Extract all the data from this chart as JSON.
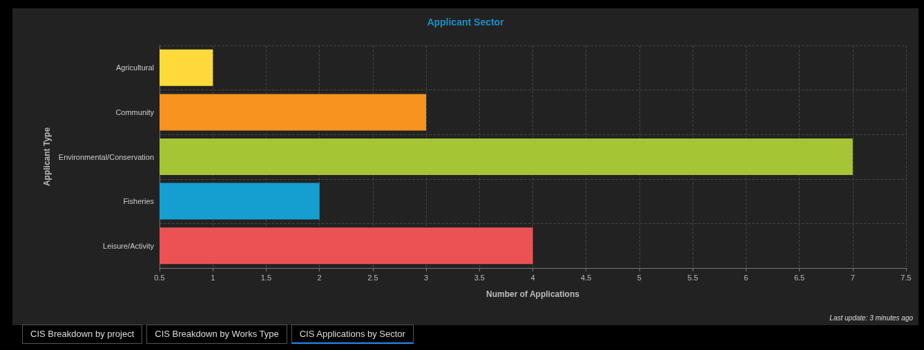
{
  "chart_data": {
    "type": "bar",
    "orientation": "horizontal",
    "title": "Applicant Sector",
    "xlabel": "Number of Applications",
    "ylabel": "Applicant Type",
    "categories": [
      "Agricultural",
      "Community",
      "Environmental/Conservation",
      "Fisheries",
      "Leisure/Activity"
    ],
    "values": [
      1,
      3,
      7,
      2,
      4
    ],
    "colors": [
      "#fedb3a",
      "#f8931f",
      "#a6c535",
      "#159fd0",
      "#ec5254"
    ],
    "xlim": [
      0.5,
      7.5
    ],
    "xticks": [
      0.5,
      1,
      1.5,
      2,
      2.5,
      3,
      3.5,
      4,
      4.5,
      5,
      5.5,
      6,
      6.5,
      7,
      7.5
    ],
    "grid": true,
    "annotations": [
      "CIS Breakdown by project",
      "CIS Breakdown by Works Type",
      "CIS Applications by Sector",
      "Last update: 3 minutes ago"
    ]
  }
}
